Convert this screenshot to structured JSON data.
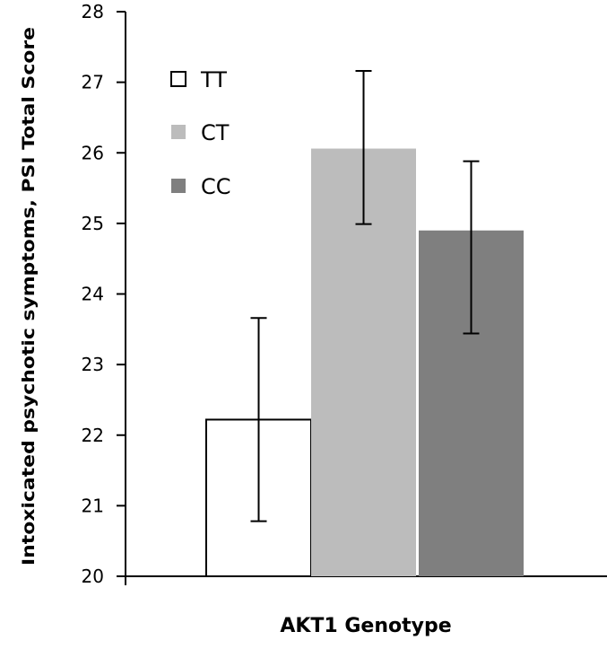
{
  "chart_data": {
    "type": "bar",
    "categories": [
      "TT",
      "CT",
      "CC"
    ],
    "values": [
      22.22,
      26.06,
      24.9
    ],
    "error_bars": [
      {
        "low": 20.78,
        "high": 23.66
      },
      {
        "low": 24.99,
        "high": 27.16
      },
      {
        "low": 23.44,
        "high": 25.88
      }
    ],
    "colors": [
      "#ffffff",
      "#bcbcbc",
      "#7f7f7f"
    ],
    "xlabel": "AKT1 Genotype",
    "ylabel": "Intoxicated psychotic symptoms, PSI Total Score",
    "ylim": [
      20,
      28
    ],
    "yticks": [
      "20",
      "21",
      "22",
      "23",
      "24",
      "25",
      "26",
      "27",
      "28"
    ],
    "legend": {
      "placement": "top-left",
      "entries": [
        "TT",
        "CT",
        "CC"
      ]
    },
    "grid": false
  }
}
